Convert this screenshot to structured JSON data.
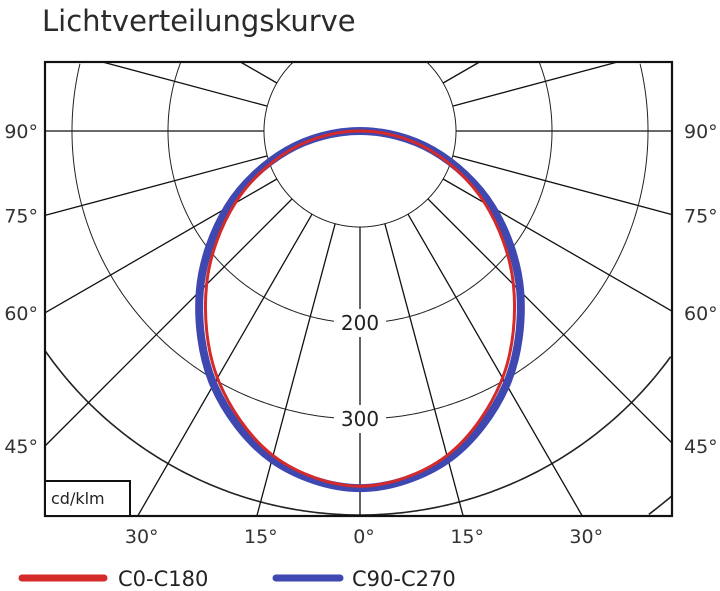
{
  "chart_data": {
    "type": "polar-line",
    "title": "Lichtverteilungskurve",
    "unit_label": "cd/klm",
    "angles_deg": [
      0,
      15,
      30,
      45,
      60,
      75,
      90
    ],
    "symmetric": true,
    "radial_labels": [
      "200",
      "300"
    ],
    "radial_rings": [
      100,
      200,
      300,
      400,
      500
    ],
    "side_tick_labels": [
      "90°",
      "75°",
      "60°",
      "45°"
    ],
    "bottom_tick_labels": [
      "30°",
      "15°",
      "0°",
      "15°",
      "30°"
    ],
    "series": [
      {
        "name": "C0-C180",
        "color": "#d42a2a",
        "values": [
          370,
          350,
          297,
          226,
          150,
          74,
          0
        ]
      },
      {
        "name": "C90-C270",
        "color": "#3f48b0",
        "values": [
          372,
          354,
          305,
          236,
          159,
          79,
          0
        ]
      }
    ],
    "grid": true,
    "legend_position": "bottom"
  }
}
